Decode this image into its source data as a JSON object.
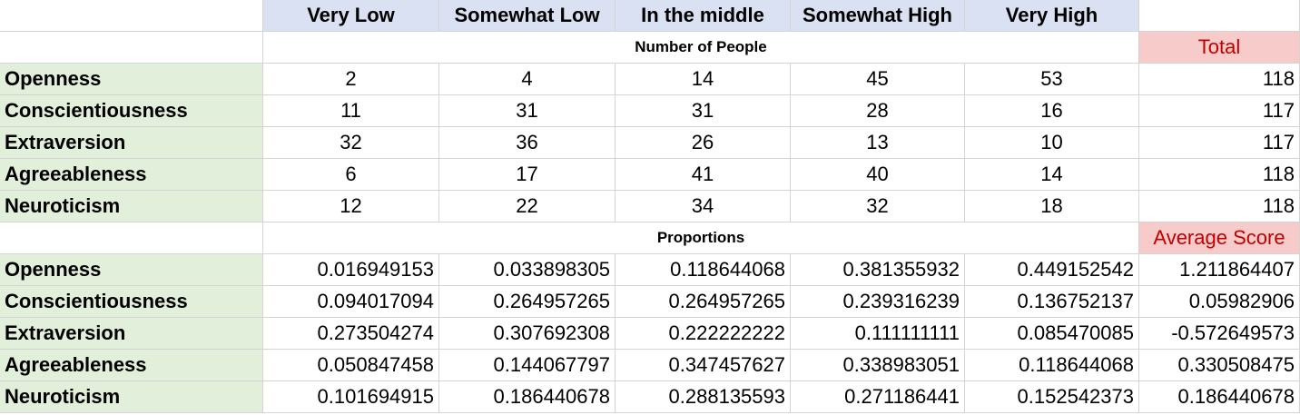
{
  "table": {
    "columns": [
      "Very Low",
      "Somewhat Low",
      "In the middle",
      "Somewhat High",
      "Very High"
    ],
    "sections": [
      {
        "title": "Number of People",
        "extra_header": "Total",
        "rows": [
          {
            "label": "Openness",
            "values": [
              2,
              4,
              14,
              45,
              53
            ],
            "extra": 118
          },
          {
            "label": "Conscientiousness",
            "values": [
              11,
              31,
              31,
              28,
              16
            ],
            "extra": 117
          },
          {
            "label": "Extraversion",
            "values": [
              32,
              36,
              26,
              13,
              10
            ],
            "extra": 117
          },
          {
            "label": "Agreeableness",
            "values": [
              6,
              17,
              41,
              40,
              14
            ],
            "extra": 118
          },
          {
            "label": "Neuroticism",
            "values": [
              12,
              22,
              34,
              32,
              18
            ],
            "extra": 118
          }
        ]
      },
      {
        "title": "Proportions",
        "extra_header": "Average Score",
        "rows": [
          {
            "label": "Openness",
            "values": [
              0.016949153,
              0.033898305,
              0.118644068,
              0.381355932,
              0.449152542
            ],
            "extra": 1.211864407
          },
          {
            "label": "Conscientiousness",
            "values": [
              0.094017094,
              0.264957265,
              0.264957265,
              0.239316239,
              0.136752137
            ],
            "extra": 0.05982906
          },
          {
            "label": "Extraversion",
            "values": [
              0.273504274,
              0.307692308,
              0.222222222,
              0.111111111,
              0.085470085
            ],
            "extra": -0.572649573
          },
          {
            "label": "Agreeableness",
            "values": [
              0.050847458,
              0.144067797,
              0.347457627,
              0.338983051,
              0.118644068
            ],
            "extra": 0.330508475
          },
          {
            "label": "Neuroticism",
            "values": [
              0.101694915,
              0.186440678,
              0.288135593,
              0.271186441,
              0.152542373
            ],
            "extra": 0.186440678
          }
        ]
      }
    ]
  }
}
